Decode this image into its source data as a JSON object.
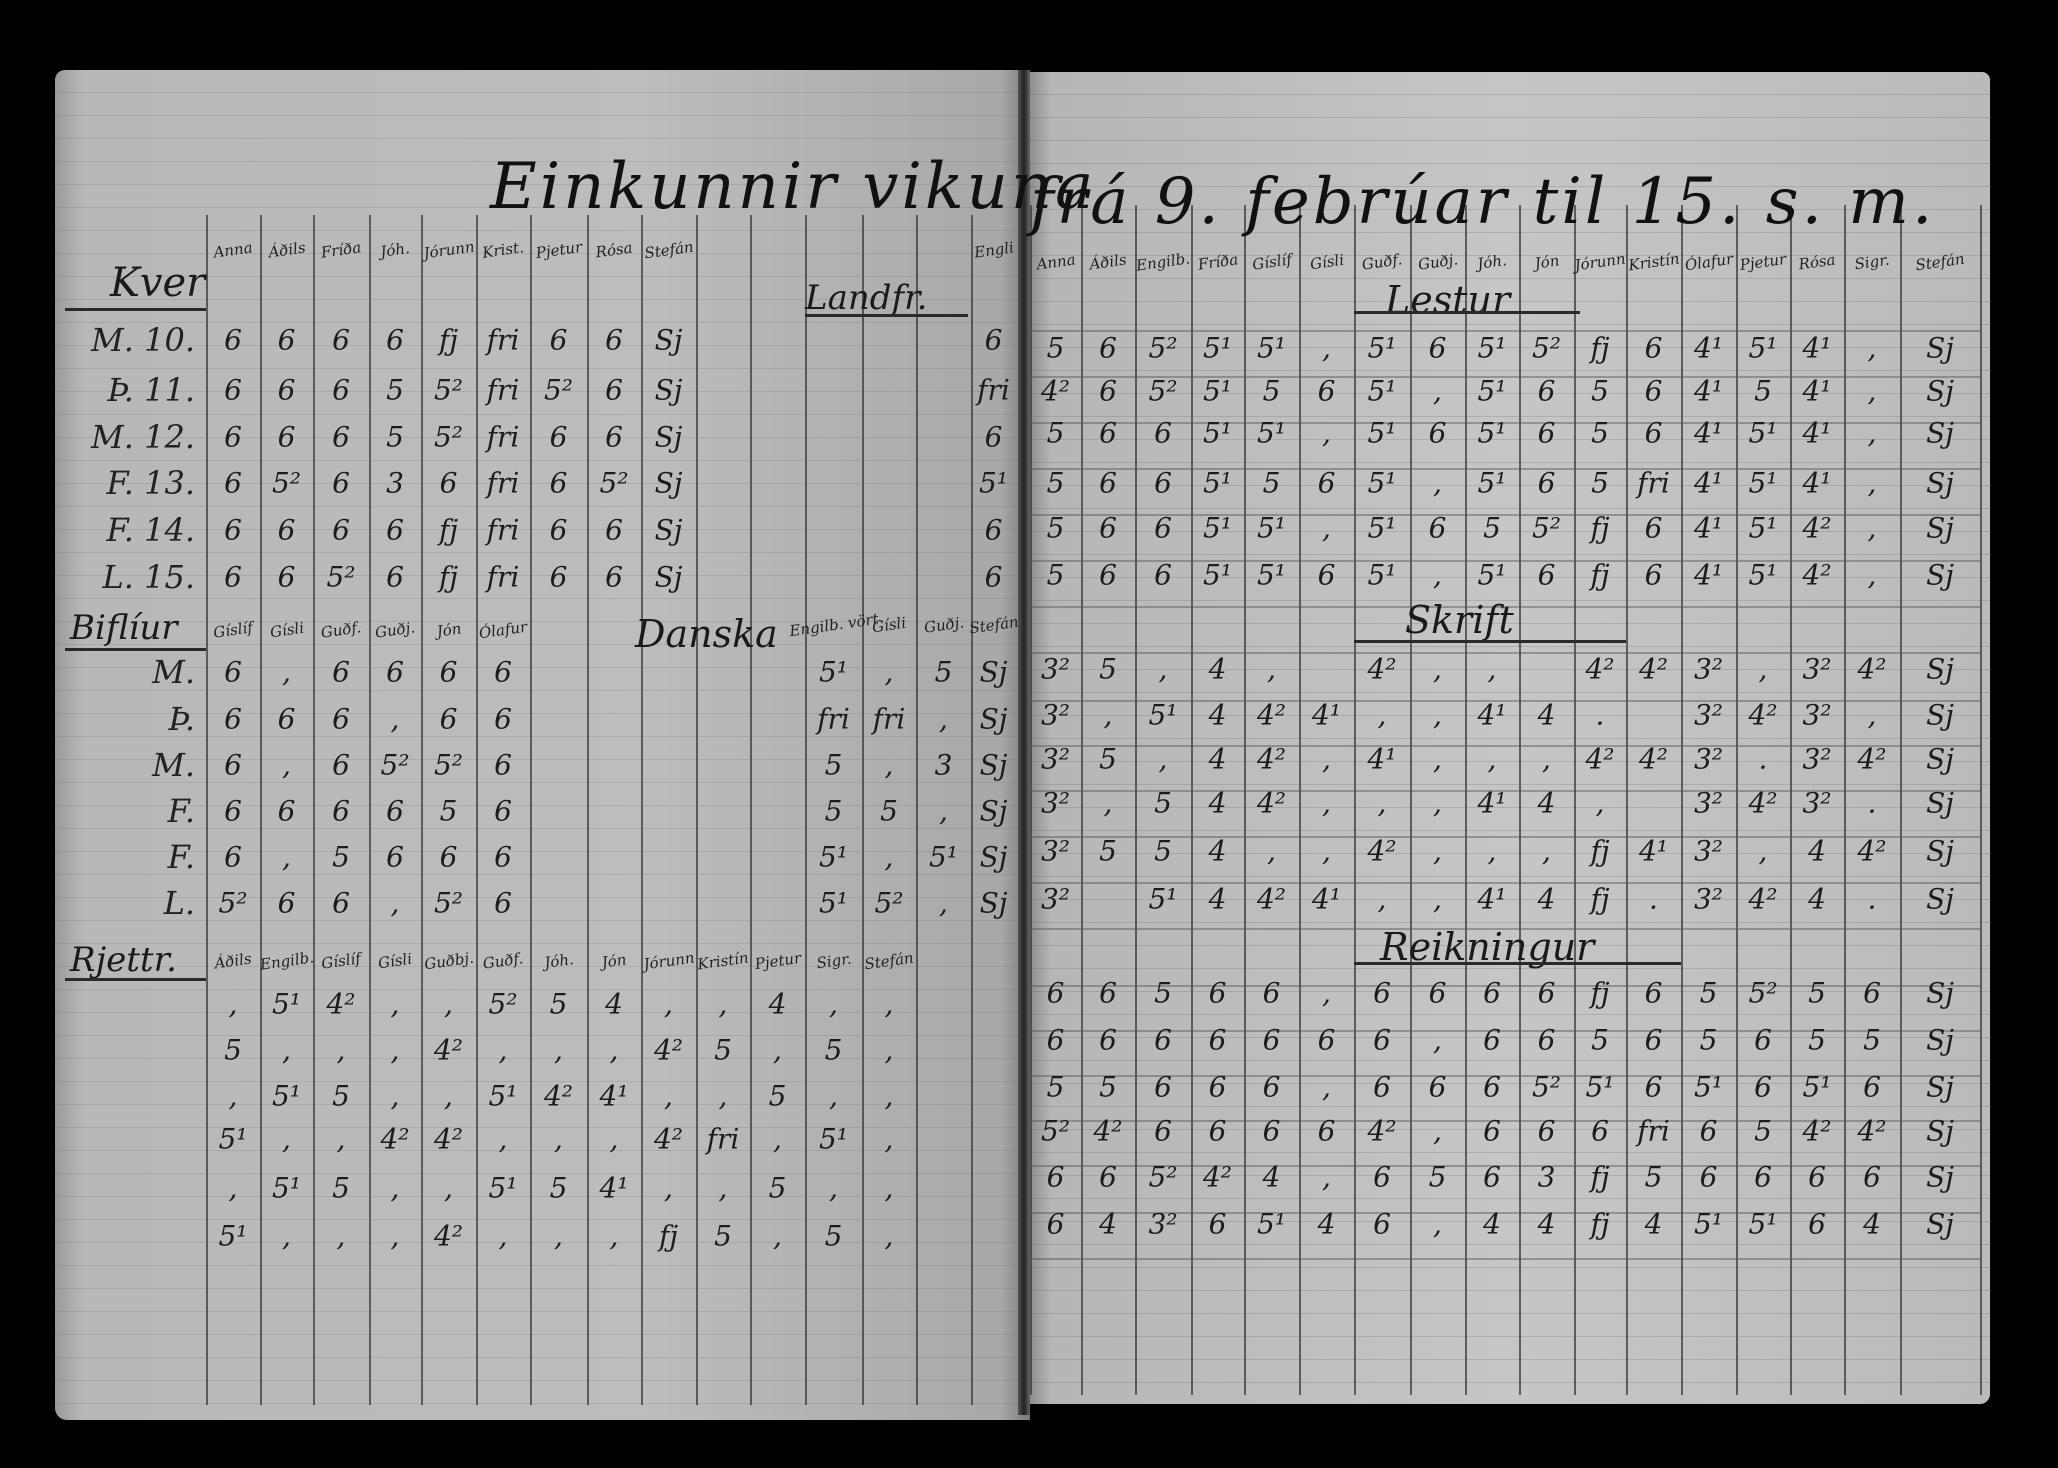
{
  "title": {
    "part1": "Einkunnir vikuna",
    "part2": "frá 9. febrúar til 15. s. m."
  },
  "left_page": {
    "kver": {
      "label": "Kver",
      "headers": [
        "Anna",
        "Áðils",
        "Fríða",
        "Jóh.",
        "Jórunn",
        "Krist.",
        "Pjetur",
        "Rósa",
        "Stefán",
        "Engli"
      ],
      "rows": [
        {
          "day": "M. 10.",
          "values": [
            "6",
            "6",
            "6",
            "6",
            "fj",
            "fri",
            "6",
            "6",
            "Sj",
            "6"
          ]
        },
        {
          "day": "Þ. 11.",
          "values": [
            "6",
            "6",
            "6",
            "5",
            "5²",
            "fri",
            "5²",
            "6",
            "Sj",
            "fri"
          ]
        },
        {
          "day": "M. 12.",
          "values": [
            "6",
            "6",
            "6",
            "5",
            "5²",
            "fri",
            "6",
            "6",
            "Sj",
            "6"
          ]
        },
        {
          "day": "F. 13.",
          "values": [
            "6",
            "5²",
            "6",
            "3",
            "6",
            "fri",
            "6",
            "5²",
            "Sj",
            "5¹"
          ]
        },
        {
          "day": "F. 14.",
          "values": [
            "6",
            "6",
            "6",
            "6",
            "fj",
            "fri",
            "6",
            "6",
            "Sj",
            "6"
          ]
        },
        {
          "day": "L. 15.",
          "values": [
            "6",
            "6",
            "5²",
            "6",
            "fj",
            "fri",
            "6",
            "6",
            "Sj",
            "6"
          ]
        }
      ]
    },
    "landafraedi": {
      "label": "Landfr."
    },
    "bibliur": {
      "label": "Biflíur",
      "headers": [
        "Gíslíf",
        "Gísli",
        "Guðf.",
        "Guðj.",
        "Jón",
        "Ólafur"
      ],
      "rows": [
        {
          "day": "M.",
          "values": [
            "6",
            ",",
            "6",
            "6",
            "6",
            "6"
          ]
        },
        {
          "day": "Þ.",
          "values": [
            "6",
            "6",
            "6",
            ",",
            "6",
            "6"
          ]
        },
        {
          "day": "M.",
          "values": [
            "6",
            ",",
            "6",
            "5²",
            "5²",
            "6"
          ]
        },
        {
          "day": "F.",
          "values": [
            "6",
            "6",
            "6",
            "6",
            "5",
            "6"
          ]
        },
        {
          "day": "F.",
          "values": [
            "6",
            ",",
            "5",
            "6",
            "6",
            "6"
          ]
        },
        {
          "day": "L.",
          "values": [
            "5²",
            "6",
            "6",
            ",",
            "5²",
            "6"
          ]
        }
      ]
    },
    "danska": {
      "label": "Danska",
      "headers": [
        "Engilb. vört",
        "Gísli",
        "Guðj.",
        "Stefán"
      ],
      "rows": [
        [
          "5¹",
          ",",
          "5",
          "Sj"
        ],
        [
          "fri",
          "fri",
          ",",
          "Sj"
        ],
        [
          "5",
          ",",
          "3",
          "Sj"
        ],
        [
          "5",
          "5",
          ",",
          "Sj"
        ],
        [
          "5¹",
          ",",
          "5¹",
          "Sj"
        ],
        [
          "5¹",
          "5²",
          ",",
          "Sj"
        ]
      ]
    },
    "rjettritun": {
      "label": "Rjettr.",
      "headers": [
        "Áðils",
        "Engilb.",
        "Gíslíf",
        "Gísli",
        "Guðbj.",
        "Guðf.",
        "Jóh.",
        "Jón",
        "Jórunn",
        "Kristín",
        "Pjetur",
        "Sigr.",
        "Stefán"
      ],
      "rows": [
        [
          ",",
          "5¹",
          "4²",
          ",",
          ",",
          "5²",
          "5",
          "4",
          ",",
          ",",
          "4",
          ",",
          ","
        ],
        [
          "5",
          ",",
          ",",
          ",",
          "4²",
          ",",
          ",",
          ",",
          "4²",
          "5",
          ",",
          "5",
          ","
        ],
        [
          ",",
          "5¹",
          "5",
          ",",
          ",",
          "5¹",
          "4²",
          "4¹",
          ",",
          ",",
          "5",
          ",",
          ","
        ],
        [
          "5¹",
          ",",
          ",",
          "4²",
          "4²",
          ",",
          ",",
          ",",
          "4²",
          "fri",
          ",",
          "5¹",
          ","
        ],
        [
          ",",
          "5¹",
          "5",
          ",",
          ",",
          "5¹",
          "5",
          "4¹",
          ",",
          ",",
          "5",
          ",",
          ","
        ],
        [
          "5¹",
          ",",
          ",",
          ",",
          "4²",
          ",",
          ",",
          ",",
          "fj",
          "5",
          ",",
          "5",
          ","
        ]
      ]
    }
  },
  "right_page": {
    "headers": [
      "Anna",
      "Áðils",
      "Engilb.",
      "Fríða",
      "Gíslíf",
      "Gísli",
      "Guðf.",
      "Guðj.",
      "Jóh.",
      "Jón",
      "Jórunn",
      "Kristín",
      "Ólafur",
      "Pjetur",
      "Rósa",
      "Sigr.",
      "Stefán"
    ],
    "lestur": {
      "label": "Lestur",
      "rows": [
        [
          "5",
          "6",
          "5²",
          "5¹",
          "5¹",
          ",",
          "5¹",
          "6",
          "5¹",
          "5²",
          "fj",
          "6",
          "4¹",
          "5¹",
          "4¹",
          ",",
          "Sj"
        ],
        [
          "4²",
          "6",
          "5²",
          "5¹",
          "5",
          "6",
          "5¹",
          ",",
          "5¹",
          "6",
          "5",
          "6",
          "4¹",
          "5",
          "4¹",
          ",",
          "Sj"
        ],
        [
          "5",
          "6",
          "6",
          "5¹",
          "5¹",
          ",",
          "5¹",
          "6",
          "5¹",
          "6",
          "5",
          "6",
          "4¹",
          "5¹",
          "4¹",
          ",",
          "Sj"
        ],
        [
          "5",
          "6",
          "6",
          "5¹",
          "5",
          "6",
          "5¹",
          ",",
          "5¹",
          "6",
          "5",
          "fri",
          "4¹",
          "5¹",
          "4¹",
          ",",
          "Sj"
        ],
        [
          "5",
          "6",
          "6",
          "5¹",
          "5¹",
          ",",
          "5¹",
          "6",
          "5",
          "5²",
          "fj",
          "6",
          "4¹",
          "5¹",
          "4²",
          ",",
          "Sj"
        ],
        [
          "5",
          "6",
          "6",
          "5¹",
          "5¹",
          "6",
          "5¹",
          ",",
          "5¹",
          "6",
          "fj",
          "6",
          "4¹",
          "5¹",
          "4²",
          ",",
          "Sj"
        ]
      ]
    },
    "skrift": {
      "label": "Skrift",
      "rows": [
        [
          "3²",
          "5",
          ",",
          "4",
          ",",
          "",
          "4²",
          ",",
          ",",
          "",
          "4²",
          "4²",
          "3²",
          ",",
          "3²",
          "4²",
          "Sj"
        ],
        [
          "3²",
          ",",
          "5¹",
          "4",
          "4²",
          "4¹",
          ",",
          ",",
          "4¹",
          "4",
          ".",
          "",
          "3²",
          "4²",
          "3²",
          ",",
          "Sj"
        ],
        [
          "3²",
          "5",
          ",",
          "4",
          "4²",
          ",",
          "4¹",
          ",",
          ",",
          ",",
          "4²",
          "4²",
          "3²",
          ".",
          "3²",
          "4²",
          "Sj"
        ],
        [
          "3²",
          ",",
          "5",
          "4",
          "4²",
          ",",
          ",",
          ",",
          "4¹",
          "4",
          ",",
          "",
          "3²",
          "4²",
          "3²",
          ".",
          "Sj"
        ],
        [
          "3²",
          "5",
          "5",
          "4",
          ",",
          ",",
          "4²",
          ",",
          ",",
          ",",
          "fj",
          "4¹",
          "3²",
          ",",
          "4",
          "4²",
          "Sj"
        ],
        [
          "3²",
          "",
          "5¹",
          "4",
          "4²",
          "4¹",
          ",",
          ",",
          "4¹",
          "4",
          "fj",
          ".",
          "3²",
          "4²",
          "4",
          ".",
          "Sj"
        ]
      ]
    },
    "reikningur": {
      "label": "Reikningur",
      "rows": [
        [
          "6",
          "6",
          "5",
          "6",
          "6",
          ",",
          "6",
          "6",
          "6",
          "6",
          "fj",
          "6",
          "5",
          "5²",
          "5",
          "6",
          "Sj"
        ],
        [
          "6",
          "6",
          "6",
          "6",
          "6",
          "6",
          "6",
          ",",
          "6",
          "6",
          "5",
          "6",
          "5",
          "6",
          "5",
          "5",
          "Sj"
        ],
        [
          "5",
          "5",
          "6",
          "6",
          "6",
          ",",
          "6",
          "6",
          "6",
          "5²",
          "5¹",
          "6",
          "5¹",
          "6",
          "5¹",
          "6",
          "Sj"
        ],
        [
          "5²",
          "4²",
          "6",
          "6",
          "6",
          "6",
          "4²",
          ",",
          "6",
          "6",
          "6",
          "fri",
          "6",
          "5",
          "4²",
          "4²",
          "Sj"
        ],
        [
          "6",
          "6",
          "5²",
          "4²",
          "4",
          ",",
          "6",
          "5",
          "6",
          "3",
          "fj",
          "5",
          "6",
          "6",
          "6",
          "6",
          "Sj"
        ],
        [
          "6",
          "4",
          "3²",
          "6",
          "5¹",
          "4",
          "6",
          ",",
          "4",
          "4",
          "fj",
          "4",
          "5¹",
          "5¹",
          "6",
          "4",
          "Sj"
        ]
      ]
    }
  }
}
